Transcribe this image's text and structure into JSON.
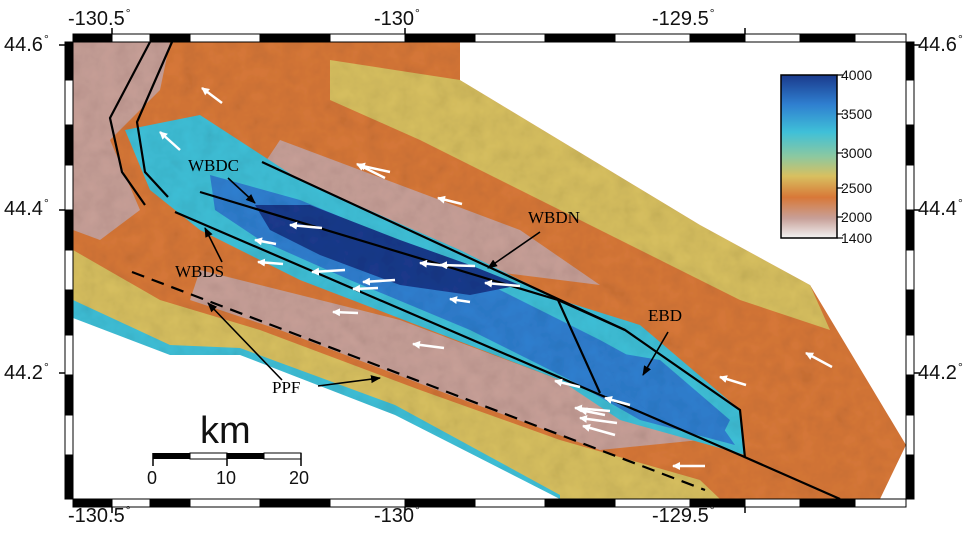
{
  "axes": {
    "top_ticks": [
      {
        "value": "-130.5"
      },
      {
        "value": "-130"
      },
      {
        "value": "-129.5"
      }
    ],
    "bottom_ticks": [
      {
        "value": "-130.5"
      },
      {
        "value": "-130"
      },
      {
        "value": "-129.5"
      }
    ],
    "left_ticks": [
      {
        "value": "44.6"
      },
      {
        "value": "44.4"
      },
      {
        "value": "44.2"
      }
    ],
    "right_ticks": [
      {
        "value": "44.6"
      },
      {
        "value": "44.4"
      },
      {
        "value": "44.2"
      }
    ],
    "degree_symbol": "°",
    "lon_range": [
      -130.63,
      -129.18
    ],
    "lat_range": [
      44.05,
      44.62
    ]
  },
  "faults": {
    "wbdc": "WBDC",
    "wbdn": "WBDN",
    "wbds": "WBDS",
    "ebd": "EBD",
    "ppf": "PPF"
  },
  "colorbar": {
    "ticks": [
      "4000",
      "3500",
      "3000",
      "2500",
      "2000",
      "1400"
    ],
    "colors": {
      "deep": "#1a3a8c",
      "mid_deep": "#2f7fd0",
      "cyan": "#3fc0d8",
      "green": "#8cc8a0",
      "yellow": "#d8c060",
      "orange": "#d87838",
      "red": "#c85a30",
      "pink": "#c8a098",
      "white": "#f2f2f2"
    }
  },
  "scalebar": {
    "title": "km",
    "labels": [
      "0",
      "10",
      "20"
    ]
  }
}
